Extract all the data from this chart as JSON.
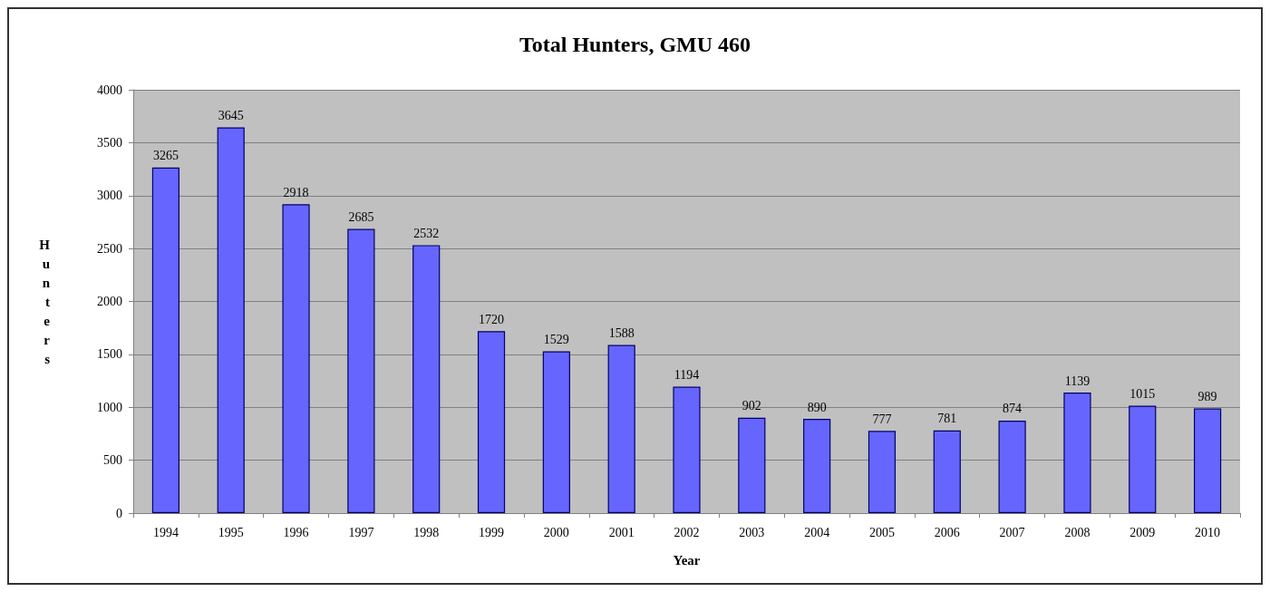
{
  "chart_data": {
    "type": "bar",
    "title": "Total Hunters, GMU 460",
    "xlabel": "Year",
    "ylabel": "Hunters",
    "categories": [
      "1994",
      "1995",
      "1996",
      "1997",
      "1998",
      "1999",
      "2000",
      "2001",
      "2002",
      "2003",
      "2004",
      "2005",
      "2006",
      "2007",
      "2008",
      "2009",
      "2010"
    ],
    "values": [
      3265,
      3645,
      2918,
      2685,
      2532,
      1720,
      1529,
      1588,
      1194,
      902,
      890,
      777,
      781,
      874,
      1139,
      1015,
      989
    ],
    "color": "#6666ff",
    "ylim": [
      0,
      4000
    ],
    "yticks": [
      0,
      500,
      1000,
      1500,
      2000,
      2500,
      3000,
      3500,
      4000
    ],
    "grid": "y",
    "data_labels": true
  }
}
